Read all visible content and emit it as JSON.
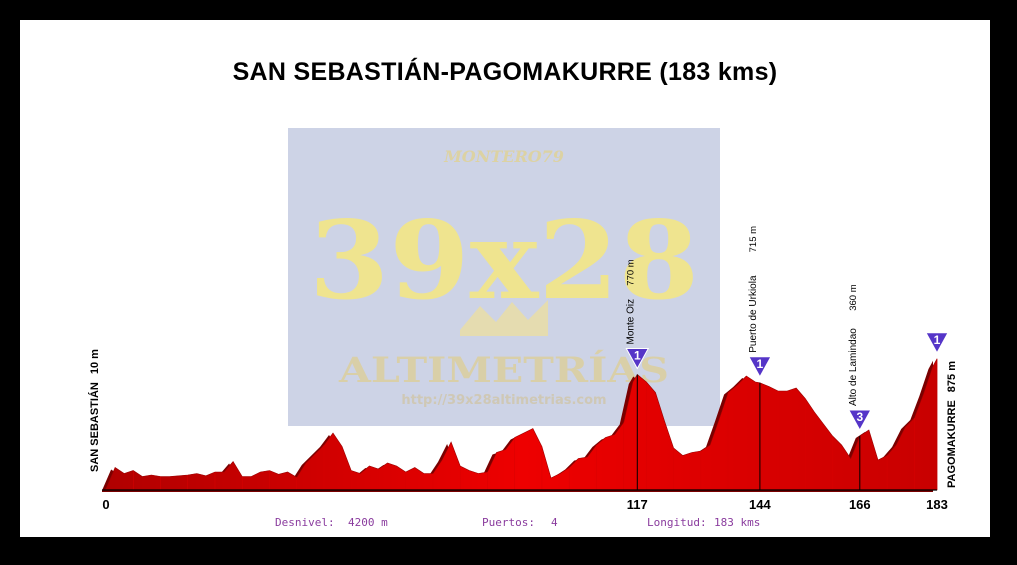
{
  "title": "SAN SEBASTIÁN-PAGOMAKURRE (183 kms)",
  "start": {
    "name": "SAN SEBASTIÁN",
    "altitude": "10 m"
  },
  "finish": {
    "name": "PAGOMAKURRE",
    "altitude": "875 m"
  },
  "watermark": {
    "author": "MONTERO79",
    "brand": "39x28",
    "subtitle": "ALTIMETRÍAS",
    "url": "http://39x28altimetrias.com"
  },
  "footer": {
    "desnivel_label": "Desnivel:",
    "desnivel_value": "4200 m",
    "puertos_label": "Puertos:",
    "puertos_value": "4",
    "longitud_label": "Longitud:",
    "longitud_value": "183 kms"
  },
  "colors": {
    "profile_fill": "#ee0000",
    "profile_dark": "#7a0000",
    "category_badge": "#5535c8",
    "footer_text": "#8a3c9e"
  },
  "chart_data": {
    "type": "area",
    "title": "SAN SEBASTIÁN-PAGOMAKURRE (183 kms)",
    "xlabel": "",
    "ylabel": "",
    "xlim": [
      0,
      183
    ],
    "ylim": [
      0,
      900
    ],
    "x_ticks": [
      "0",
      "117",
      "144",
      "166",
      "183"
    ],
    "x": [
      0,
      2,
      4,
      6,
      8,
      10,
      12,
      14,
      16,
      18,
      20,
      22,
      24,
      26,
      28,
      30,
      32,
      34,
      36,
      38,
      40,
      42,
      44,
      46,
      48,
      50,
      52,
      54,
      56,
      58,
      60,
      62,
      64,
      66,
      68,
      70,
      72,
      74,
      76,
      78,
      80,
      82,
      84,
      86,
      88,
      90,
      92,
      94,
      96,
      98,
      100,
      102,
      104,
      106,
      108,
      110,
      112,
      114,
      116,
      117,
      119,
      121,
      123,
      125,
      127,
      129,
      131,
      133,
      135,
      137,
      139,
      141,
      143,
      144,
      146,
      148,
      150,
      152,
      154,
      156,
      158,
      160,
      162,
      164,
      166,
      168,
      170,
      172,
      174,
      176,
      178,
      180,
      182,
      183
    ],
    "y": [
      10,
      150,
      110,
      130,
      90,
      100,
      90,
      90,
      95,
      100,
      110,
      95,
      120,
      120,
      190,
      90,
      90,
      120,
      130,
      105,
      120,
      85,
      180,
      240,
      300,
      380,
      290,
      130,
      110,
      160,
      140,
      180,
      160,
      120,
      150,
      110,
      110,
      200,
      320,
      160,
      130,
      110,
      120,
      250,
      270,
      350,
      380,
      410,
      290,
      80,
      110,
      150,
      210,
      220,
      300,
      350,
      370,
      450,
      720,
      770,
      720,
      650,
      460,
      280,
      230,
      250,
      260,
      300,
      470,
      650,
      700,
      760,
      720,
      715,
      690,
      660,
      660,
      680,
      610,
      520,
      440,
      360,
      300,
      210,
      360,
      400,
      200,
      230,
      300,
      420,
      480,
      640,
      820,
      875
    ],
    "climbs": [
      {
        "name": "Monte Oiz",
        "altitude": "770 m",
        "km": 117,
        "category": "1"
      },
      {
        "name": "Puerto de Urkiola",
        "altitude": "715 m",
        "km": 144,
        "category": "1"
      },
      {
        "name": "Alto de Lamindao",
        "altitude": "360 m",
        "km": 166,
        "category": "3"
      },
      {
        "name": "",
        "altitude": "875 m",
        "km": 183,
        "category": "1"
      }
    ]
  }
}
